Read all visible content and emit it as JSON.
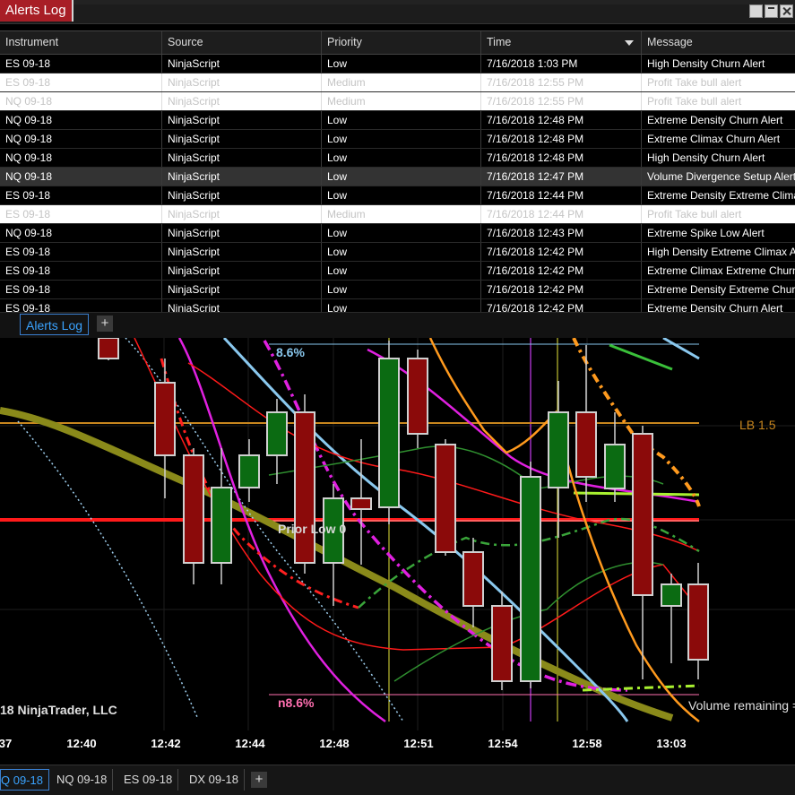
{
  "window": {
    "title": "Alerts Log"
  },
  "alerts": {
    "columns": [
      "Instrument",
      "Source",
      "Priority",
      "Time",
      "Message"
    ],
    "rows": [
      {
        "instrument": "ES 09-18",
        "source": "NinjaScript",
        "priority": "Low",
        "time": "7/16/2018 1:03 PM",
        "message": "High Density Churn Alert",
        "style": "dark"
      },
      {
        "instrument": "ES 09-18",
        "source": "NinjaScript",
        "priority": "Medium",
        "time": "7/16/2018 12:55 PM",
        "message": "Profit Take bull alert",
        "style": "med"
      },
      {
        "instrument": "NQ 09-18",
        "source": "NinjaScript",
        "priority": "Medium",
        "time": "7/16/2018 12:55 PM",
        "message": "Profit Take bull alert",
        "style": "med"
      },
      {
        "instrument": "NQ 09-18",
        "source": "NinjaScript",
        "priority": "Low",
        "time": "7/16/2018 12:48 PM",
        "message": "Extreme Density Churn Alert",
        "style": "dark"
      },
      {
        "instrument": "NQ 09-18",
        "source": "NinjaScript",
        "priority": "Low",
        "time": "7/16/2018 12:48 PM",
        "message": "Extreme Climax Churn Alert",
        "style": "dark"
      },
      {
        "instrument": "NQ 09-18",
        "source": "NinjaScript",
        "priority": "Low",
        "time": "7/16/2018 12:48 PM",
        "message": "High Density Churn Alert",
        "style": "dark"
      },
      {
        "instrument": "NQ 09-18",
        "source": "NinjaScript",
        "priority": "Low",
        "time": "7/16/2018 12:47 PM",
        "message": "Volume Divergence Setup Alert",
        "style": "sel"
      },
      {
        "instrument": "ES 09-18",
        "source": "NinjaScript",
        "priority": "Low",
        "time": "7/16/2018 12:44 PM",
        "message": "Extreme Density Extreme Climax",
        "style": "dark"
      },
      {
        "instrument": "ES 09-18",
        "source": "NinjaScript",
        "priority": "Medium",
        "time": "7/16/2018 12:44 PM",
        "message": "Profit Take bull alert",
        "style": "med"
      },
      {
        "instrument": "NQ 09-18",
        "source": "NinjaScript",
        "priority": "Low",
        "time": "7/16/2018 12:43 PM",
        "message": "Extreme Spike Low Alert",
        "style": "dark"
      },
      {
        "instrument": "ES 09-18",
        "source": "NinjaScript",
        "priority": "Low",
        "time": "7/16/2018 12:42 PM",
        "message": "High Density Extreme Climax Alert",
        "style": "dark"
      },
      {
        "instrument": "ES 09-18",
        "source": "NinjaScript",
        "priority": "Low",
        "time": "7/16/2018 12:42 PM",
        "message": "Extreme Climax Extreme Churn",
        "style": "dark"
      },
      {
        "instrument": "ES 09-18",
        "source": "NinjaScript",
        "priority": "Low",
        "time": "7/16/2018 12:42 PM",
        "message": "Extreme Density Extreme Churn",
        "style": "dark"
      },
      {
        "instrument": "ES 09-18",
        "source": "NinjaScript",
        "priority": "Low",
        "time": "7/16/2018 12:42 PM",
        "message": "Extreme Density Churn Alert",
        "style": "dark"
      }
    ]
  },
  "panel_tabs": {
    "active": "Alerts Log",
    "add": "+"
  },
  "chart": {
    "labels": {
      "pct_top": "8.6%",
      "pct_bottom": "n8.6%",
      "lb": "LB 1.5",
      "prior_low": "Prior Low 0",
      "copyright": "18 NinjaTrader, LLC",
      "volume_remaining": "Volume remaining ="
    },
    "x_ticks": [
      "37",
      "12:40",
      "12:42",
      "12:44",
      "12:48",
      "12:51",
      "12:54",
      "12:58",
      "13:03"
    ],
    "colors": {
      "bull": "#0b6b12",
      "bear": "#8b0a0a",
      "lb": "#c8861e",
      "prior_low": "#ff1a1a",
      "magenta": "#e020e0",
      "orange": "#ff9a1e",
      "olive": "#8a8a1a"
    }
  },
  "instrument_tabs": {
    "items": [
      "Q 09-18",
      "NQ 09-18",
      "ES 09-18",
      "DX 09-18"
    ],
    "active": "Q 09-18",
    "add": "+"
  }
}
